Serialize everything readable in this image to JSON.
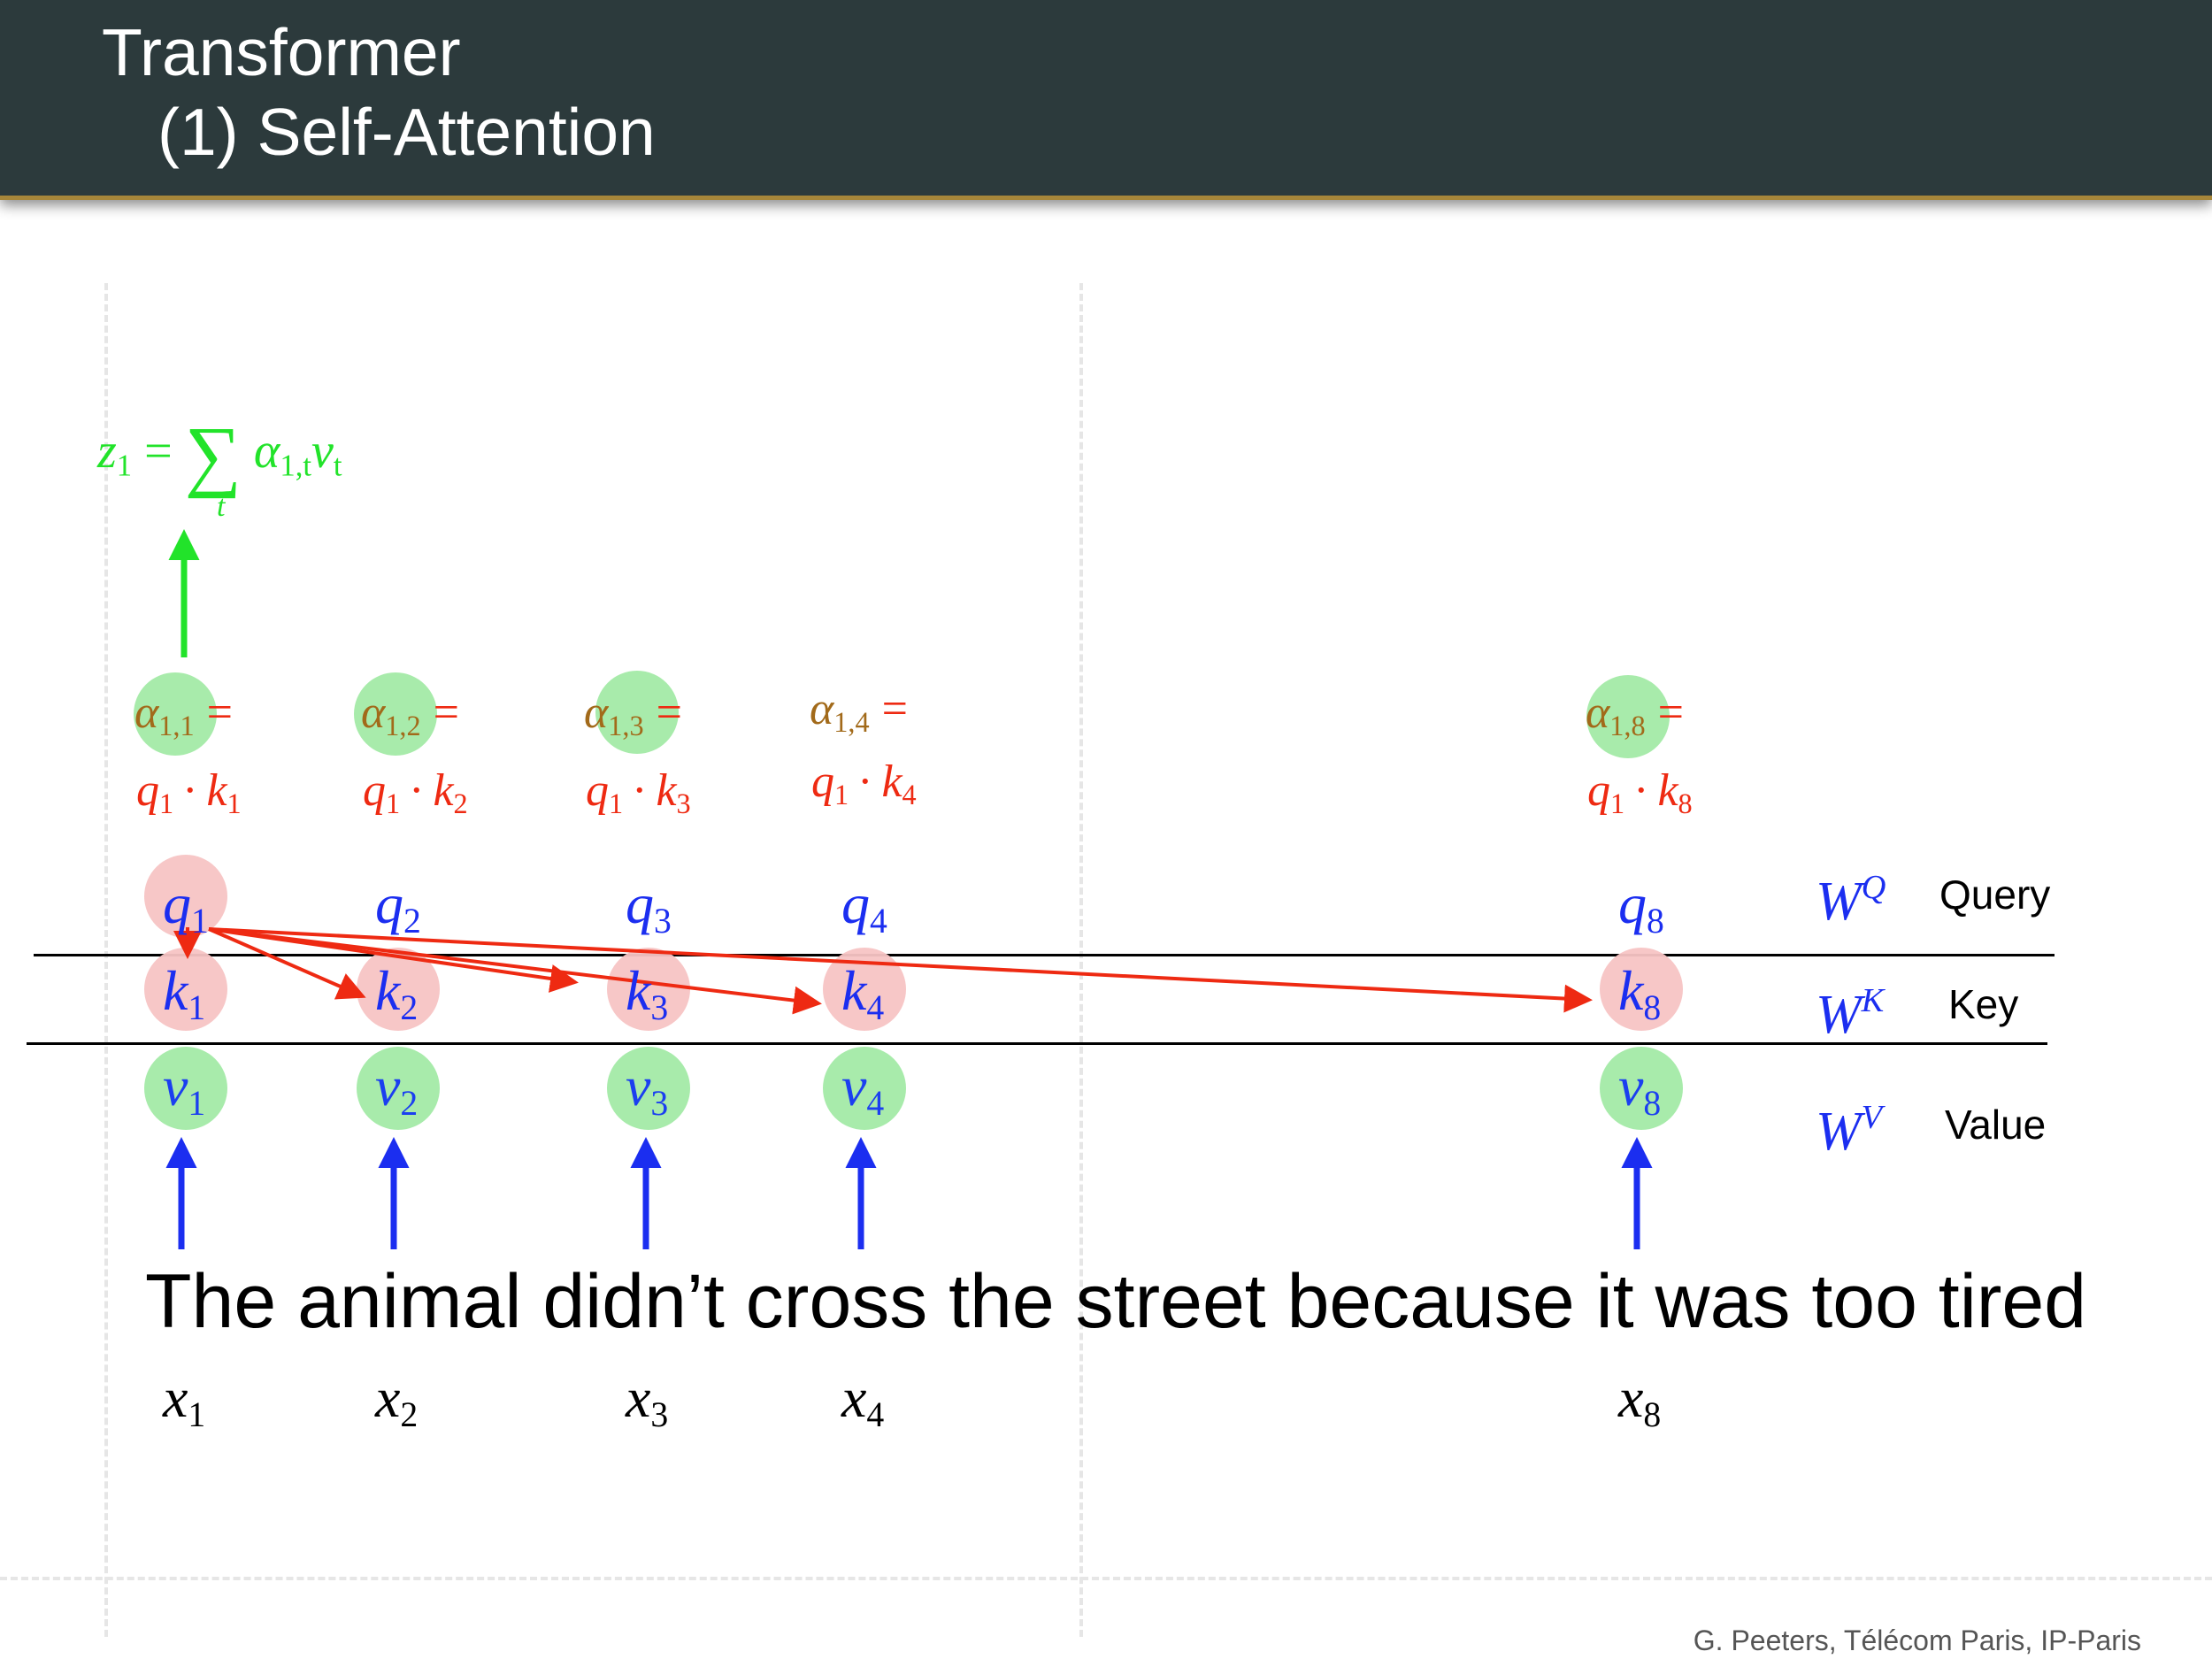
{
  "header": {
    "title": "Transformer",
    "subtitle": "(1) Self-Attention"
  },
  "output_formula": {
    "lhs": "z",
    "lhs_sub": "1",
    "eq": "=",
    "sum": "∑",
    "sum_index": "t",
    "alpha": "α",
    "alpha_sub": "1,t",
    "v": "v",
    "v_sub": "t"
  },
  "columns": [
    {
      "idx": "1",
      "alpha_sub": "1,1",
      "dot": "q₁ · k₁"
    },
    {
      "idx": "2",
      "alpha_sub": "1,2",
      "dot": "q₁ · k₂"
    },
    {
      "idx": "3",
      "alpha_sub": "1,3",
      "dot": "q₁ · k₃"
    },
    {
      "idx": "4",
      "alpha_sub": "1,4",
      "dot": "q₁ · k₄"
    },
    {
      "idx": "8",
      "alpha_sub": "1,8",
      "dot": "q₁ · k₈"
    }
  ],
  "symbols": {
    "q": "q",
    "k": "k",
    "v": "v",
    "x": "x",
    "alpha": "α",
    "equals": "=",
    "dot_q": "q",
    "dot_k": "k",
    "dot_op": "·"
  },
  "weights": [
    {
      "symbol": "W",
      "sup": "Q",
      "label": "Query"
    },
    {
      "symbol": "W",
      "sup": "K",
      "label": "Key"
    },
    {
      "symbol": "W",
      "sup": "V",
      "label": "Value"
    }
  ],
  "sentence": "The animal didn’t cross the street because it was too tired",
  "footer": "G. Peeters, Télécom Paris, IP-Paris",
  "colors": {
    "header_bg": "#2c3a3c",
    "query_blue": "#1b2ef0",
    "attention_red": "#ee2a12",
    "alpha_olive": "#a26a1a",
    "output_green": "#22e32a",
    "value_circle": "#a3eaa6",
    "key_circle": "#f7c4c4"
  },
  "icons": {
    "input_arrow": "blue-up-arrow",
    "output_arrow": "green-up-arrow",
    "attention_arrow": "red-arrow"
  }
}
